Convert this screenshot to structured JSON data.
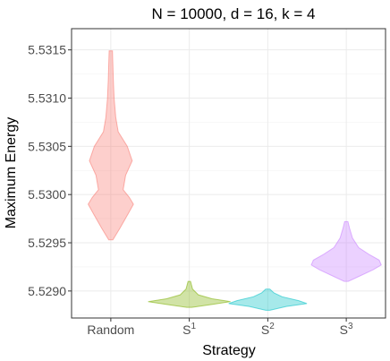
{
  "chart_data": {
    "type": "violin",
    "title": "N = 10000, d = 16, k = 4",
    "xlabel": "Strategy",
    "ylabel": "Maximum Energy",
    "ylim": [
      5.52872,
      5.53172
    ],
    "yticks": [
      5.529,
      5.5295,
      5.53,
      5.5305,
      5.531,
      5.5315
    ],
    "ytick_labels": [
      "5.5290",
      "5.5295",
      "5.5300",
      "5.5305",
      "5.5310",
      "5.5315"
    ],
    "grid": true,
    "legend": "none",
    "categories": [
      {
        "base": "Random",
        "sup": ""
      },
      {
        "base": "S",
        "sup": "1"
      },
      {
        "base": "S",
        "sup": "2"
      },
      {
        "base": "S",
        "sup": "3"
      }
    ],
    "series": [
      {
        "category": "Random",
        "color": "#F8766D",
        "min": 5.52953,
        "max": 5.53149,
        "profile": [
          [
            5.52953,
            0.05
          ],
          [
            5.52965,
            0.22
          ],
          [
            5.5298,
            0.42
          ],
          [
            5.5299,
            0.55
          ],
          [
            5.52997,
            0.45
          ],
          [
            5.53005,
            0.3
          ],
          [
            5.5302,
            0.36
          ],
          [
            5.53035,
            0.52
          ],
          [
            5.5305,
            0.4
          ],
          [
            5.53065,
            0.18
          ],
          [
            5.5308,
            0.12
          ],
          [
            5.531,
            0.08
          ],
          [
            5.5312,
            0.06
          ],
          [
            5.53149,
            0.04
          ]
        ]
      },
      {
        "category": "S1",
        "color": "#7CAE00",
        "min": 5.52883,
        "max": 5.5291,
        "profile": [
          [
            5.52883,
            0.06
          ],
          [
            5.52886,
            0.55
          ],
          [
            5.52889,
            1.0
          ],
          [
            5.52892,
            0.55
          ],
          [
            5.52896,
            0.22
          ],
          [
            5.52902,
            0.08
          ],
          [
            5.5291,
            0.03
          ]
        ]
      },
      {
        "category": "S2",
        "color": "#00BFC4",
        "min": 5.5288,
        "max": 5.52902,
        "profile": [
          [
            5.5288,
            0.05
          ],
          [
            5.52884,
            0.45
          ],
          [
            5.52887,
            0.95
          ],
          [
            5.5289,
            0.75
          ],
          [
            5.52894,
            0.35
          ],
          [
            5.52898,
            0.15
          ],
          [
            5.52902,
            0.05
          ]
        ]
      },
      {
        "category": "S3",
        "color": "#C77CFF",
        "min": 5.5291,
        "max": 5.52972,
        "profile": [
          [
            5.5291,
            0.05
          ],
          [
            5.52916,
            0.35
          ],
          [
            5.52922,
            0.65
          ],
          [
            5.52927,
            0.85
          ],
          [
            5.52932,
            0.8
          ],
          [
            5.52938,
            0.55
          ],
          [
            5.52945,
            0.3
          ],
          [
            5.52955,
            0.15
          ],
          [
            5.52965,
            0.08
          ],
          [
            5.52972,
            0.04
          ]
        ]
      }
    ]
  }
}
